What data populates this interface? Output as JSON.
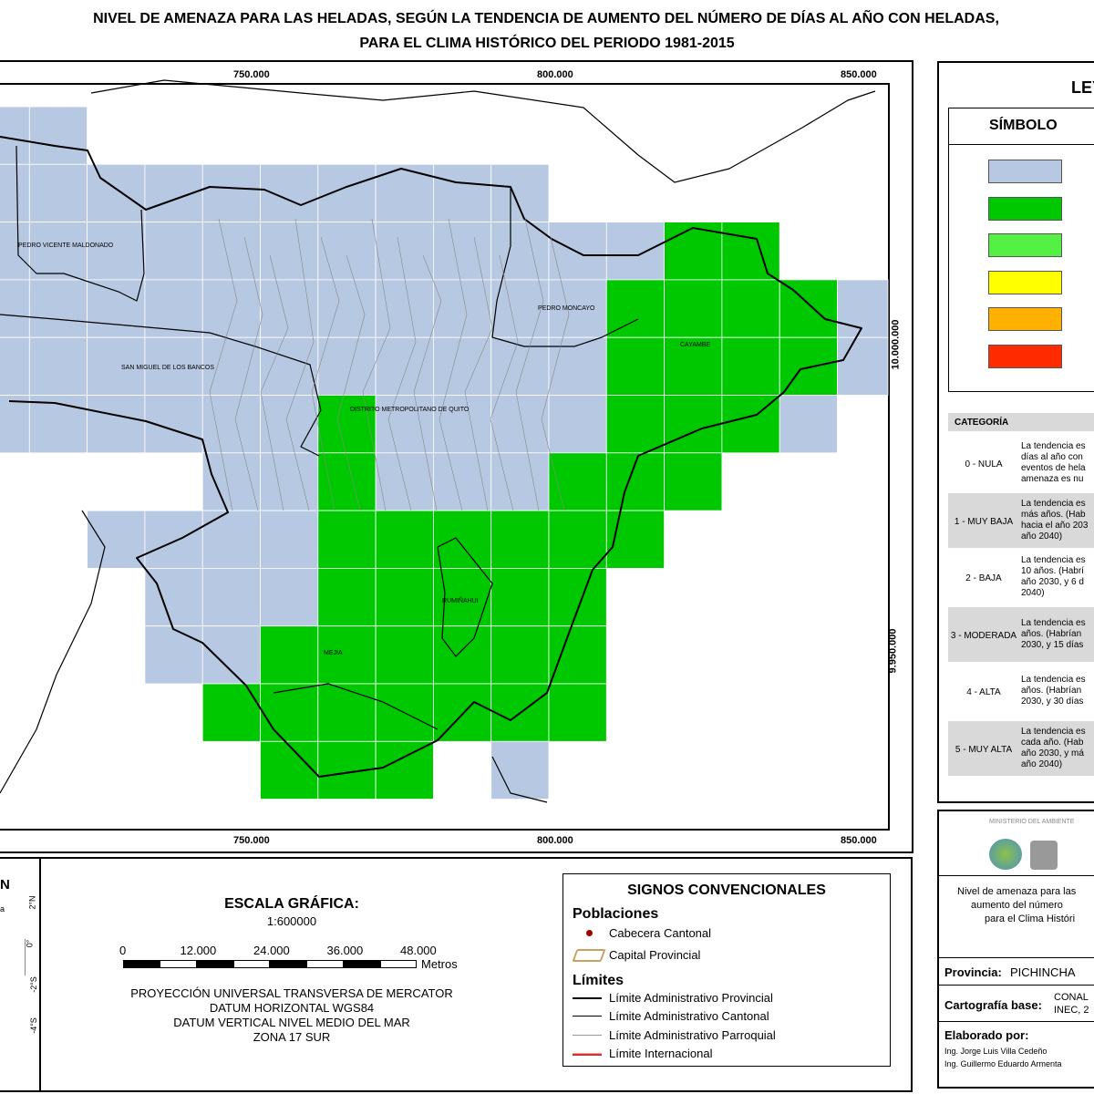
{
  "header": {
    "title_lines": [
      "NIVEL DE AMENAZA PARA LAS HELADAS, SEGÚN LA TENDENCIA DE AUMENTO DEL NÚMERO DE DÍAS AL AÑO CON HELADAS,",
      "PARA EL CLIMA HISTÓRICO DEL PERIODO 1981-2015"
    ]
  },
  "map": {
    "x_ticks_top": [
      "750.000",
      "800.000",
      "850.000"
    ],
    "x_ticks_bottom": [
      "750.000",
      "800.000",
      "850.000"
    ],
    "y_ticks": [
      "10.000.000",
      "9.950.000"
    ],
    "places": [
      "PEDRO VICENTE MALDONADO",
      "SAN MIGUEL DE LOS BANCOS",
      "DISTRITO METROPOLITANO DE QUITO",
      "PEDRO MONCAYO",
      "CAYAMBE",
      "RUMIÑAHUI",
      "MEJIA"
    ]
  },
  "legend": {
    "title": "LEYENDA",
    "symbol_header": "SÍMBOLO",
    "colors": [
      "#b7c9e2",
      "#00c800",
      "#55f044",
      "#ffff00",
      "#ffb000",
      "#ff2a00"
    ],
    "category_header": "CATEGORÍA",
    "rows": [
      {
        "category": "0 - NULA",
        "text_lines": [
          "La tendencia es",
          "días al año con",
          "eventos de hela",
          "amenaza es nu"
        ]
      },
      {
        "category": "1 - MUY BAJA",
        "text_lines": [
          "La tendencia es",
          "más años. (Hab",
          "hacia el año 203",
          "año 2040)"
        ]
      },
      {
        "category": "2 - BAJA",
        "text_lines": [
          "La tendencia es",
          "10 años. (Habrí",
          "año 2030, y 6 d",
          "2040)"
        ]
      },
      {
        "category": "3 - MODERADA",
        "text_lines": [
          "La tendencia es",
          "años. (Habrían",
          "2030, y 15 días"
        ]
      },
      {
        "category": "4 - ALTA",
        "text_lines": [
          "La tendencia es",
          "años. (Habrían",
          "2030, y 30 días"
        ]
      },
      {
        "category": "5 - MUY ALTA",
        "text_lines": [
          "La tendencia es",
          "cada año. (Hab",
          "año 2030, y má",
          "año 2040)"
        ]
      }
    ]
  },
  "locator": {
    "title": "N",
    "label": "a",
    "lat_labels": [
      "2°N",
      "0°",
      "-2°S",
      "-4°S"
    ]
  },
  "scale": {
    "title": "ESCALA GRÁFICA:",
    "ratio": "1:600000",
    "tick_labels": [
      "0",
      "12.000",
      "24.000",
      "36.000",
      "48.000"
    ],
    "unit": "Metros",
    "projection_lines": [
      "PROYECCIÓN UNIVERSAL TRANSVERSA DE MERCATOR",
      "DATUM HORIZONTAL WGS84",
      "DATUM VERTICAL NIVEL MEDIO DEL MAR",
      "ZONA 17 SUR"
    ]
  },
  "signs": {
    "title": "SIGNOS CONVENCIONALES",
    "populations_title": "Poblaciones",
    "populations": [
      "Cabecera Cantonal",
      "Capital Provincial"
    ],
    "limits_title": "Límites",
    "limits": [
      "Límite Administrativo Provincial",
      "Límite Administrativo Cantonal",
      "Límite Administrativo Parroquial",
      "Límite Internacional"
    ]
  },
  "credits": {
    "ministry": "MINISTERIO DEL AMBIENTE",
    "description_lines": [
      "Nivel de amenaza para las",
      "aumento del número",
      "para el Clima Históri"
    ],
    "province_label": "Provincia:",
    "province": "PICHINCHA",
    "cartography_label": "Cartografía base:",
    "cartography_lines": [
      "CONAL",
      "INEC, 2"
    ],
    "made_by_label": "Elaborado por:",
    "authors": [
      "Ing. Jorge Luis Villa Cedeño",
      "Ing. Guillermo Eduardo Armenta"
    ]
  }
}
